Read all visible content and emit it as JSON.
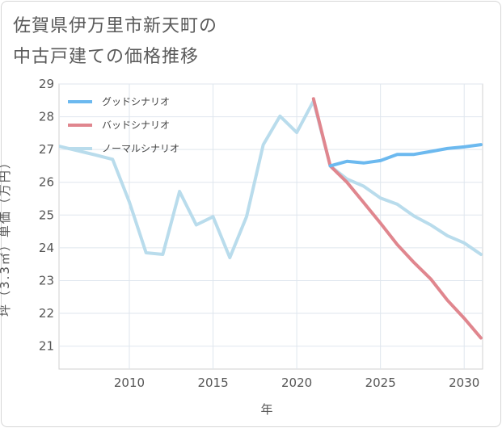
{
  "title_line1": "佐賀県伊万里市新天町の",
  "title_line2": "中古戸建ての価格推移",
  "chart_data": {
    "type": "line",
    "xlabel": "年",
    "ylabel": "坪（3.3㎡）単価（万円）",
    "xlim": [
      2005.8,
      2031.1
    ],
    "ylim": [
      20.3,
      29
    ],
    "xticks": [
      2010,
      2015,
      2020,
      2025,
      2030
    ],
    "yticks": [
      21,
      22,
      23,
      24,
      25,
      26,
      27,
      28,
      29
    ],
    "grid": true,
    "legend_position": "top-left",
    "series": [
      {
        "name": "グッドシナリオ",
        "color": "#6cb9ef",
        "x": [
          2022,
          2023,
          2024,
          2025,
          2026,
          2027,
          2028,
          2029,
          2030,
          2031
        ],
        "y": [
          26.5,
          26.64,
          26.59,
          26.66,
          26.85,
          26.85,
          26.94,
          27.03,
          27.08,
          27.15
        ]
      },
      {
        "name": "バッドシナリオ",
        "color": "#e0868e",
        "x": [
          2021,
          2022,
          2023,
          2024,
          2025,
          2026,
          2027,
          2028,
          2029,
          2030,
          2031
        ],
        "y": [
          28.55,
          26.5,
          26.0,
          25.38,
          24.75,
          24.1,
          23.55,
          23.05,
          22.4,
          21.85,
          21.25
        ]
      },
      {
        "name": "ノーマルシナリオ",
        "color": "#b9dcec",
        "x": [
          2005.8,
          2008,
          2009,
          2010,
          2011,
          2012,
          2013,
          2014,
          2015,
          2016,
          2017,
          2018,
          2019,
          2020,
          2021,
          2022,
          2023,
          2024,
          2025,
          2026,
          2027,
          2028,
          2029,
          2030,
          2031
        ],
        "y": [
          27.1,
          26.83,
          26.7,
          25.4,
          23.85,
          23.8,
          25.72,
          24.7,
          24.95,
          23.7,
          24.95,
          27.15,
          28.02,
          27.52,
          28.48,
          26.5,
          26.1,
          25.88,
          25.52,
          25.33,
          24.97,
          24.7,
          24.37,
          24.15,
          23.8
        ]
      }
    ]
  }
}
